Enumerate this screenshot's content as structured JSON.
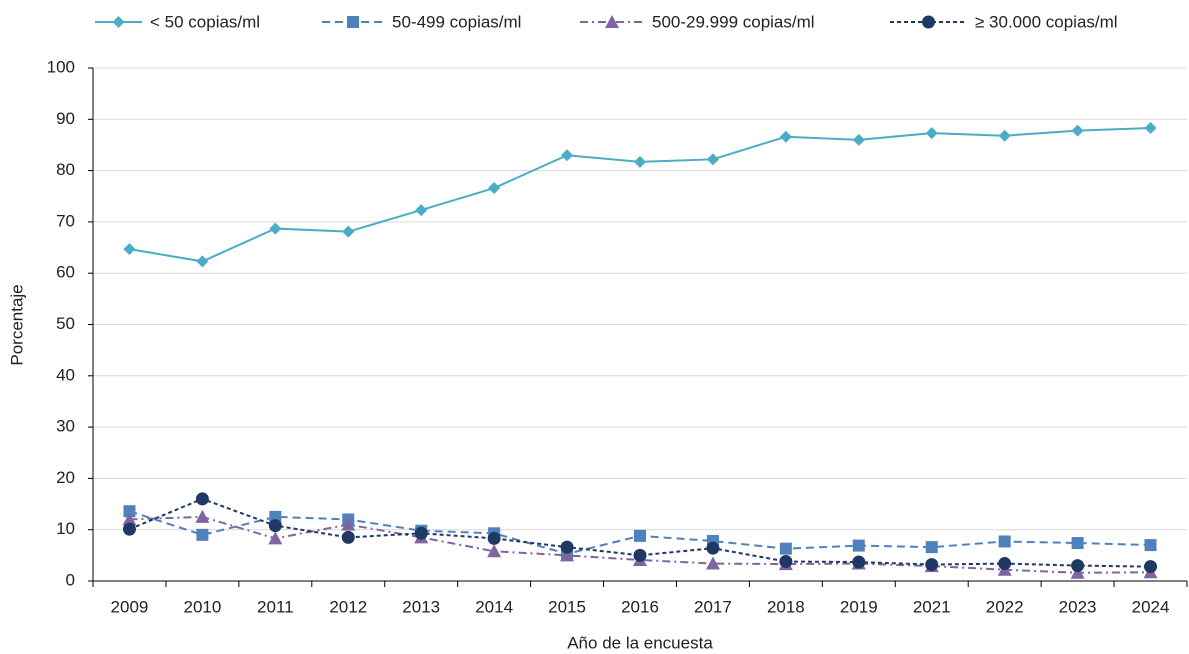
{
  "chart_data": {
    "type": "line",
    "x_label": "Año de la encuesta",
    "y_label": "Porcentaje",
    "categories": [
      "2009",
      "2010",
      "2011",
      "2012",
      "2013",
      "2014",
      "2015",
      "2016",
      "2017",
      "2018",
      "2019",
      "2021",
      "2022",
      "2023",
      "2024"
    ],
    "series": [
      {
        "name": "< 50 copias/ml",
        "color": "#4bacc6",
        "marker": "diamond",
        "dash": "solid",
        "values": [
          64.7,
          62.3,
          68.7,
          68.1,
          72.3,
          76.6,
          83.0,
          81.7,
          82.2,
          86.6,
          86.0,
          87.3,
          86.8,
          87.8,
          88.3
        ]
      },
      {
        "name": "50-499 copias/ml",
        "color": "#4f81bd",
        "marker": "square",
        "dash": "dashed",
        "values": [
          13.6,
          9.0,
          12.5,
          12.0,
          9.8,
          9.3,
          5.3,
          8.8,
          7.8,
          6.3,
          6.9,
          6.6,
          7.7,
          7.4,
          7.0
        ]
      },
      {
        "name": "500-29.999 copias/ml",
        "color": "#8064a2",
        "marker": "triangle",
        "dash": "dashdot",
        "values": [
          12.0,
          12.5,
          8.3,
          11.0,
          8.5,
          5.8,
          5.0,
          4.1,
          3.4,
          3.3,
          3.4,
          2.9,
          2.2,
          1.6,
          1.7
        ]
      },
      {
        "name": "≥ 30.000 copias/ml",
        "color": "#1f3864",
        "marker": "circle",
        "dash": "dotted",
        "values": [
          10.1,
          16.0,
          10.8,
          8.5,
          9.3,
          8.3,
          6.6,
          5.0,
          6.4,
          3.8,
          3.7,
          3.2,
          3.4,
          3.0,
          2.8
        ]
      }
    ],
    "ylim": [
      0,
      100
    ],
    "yticks": [
      0,
      10,
      20,
      30,
      40,
      50,
      60,
      70,
      80,
      90,
      100
    ],
    "grid": true,
    "legend": "top"
  }
}
